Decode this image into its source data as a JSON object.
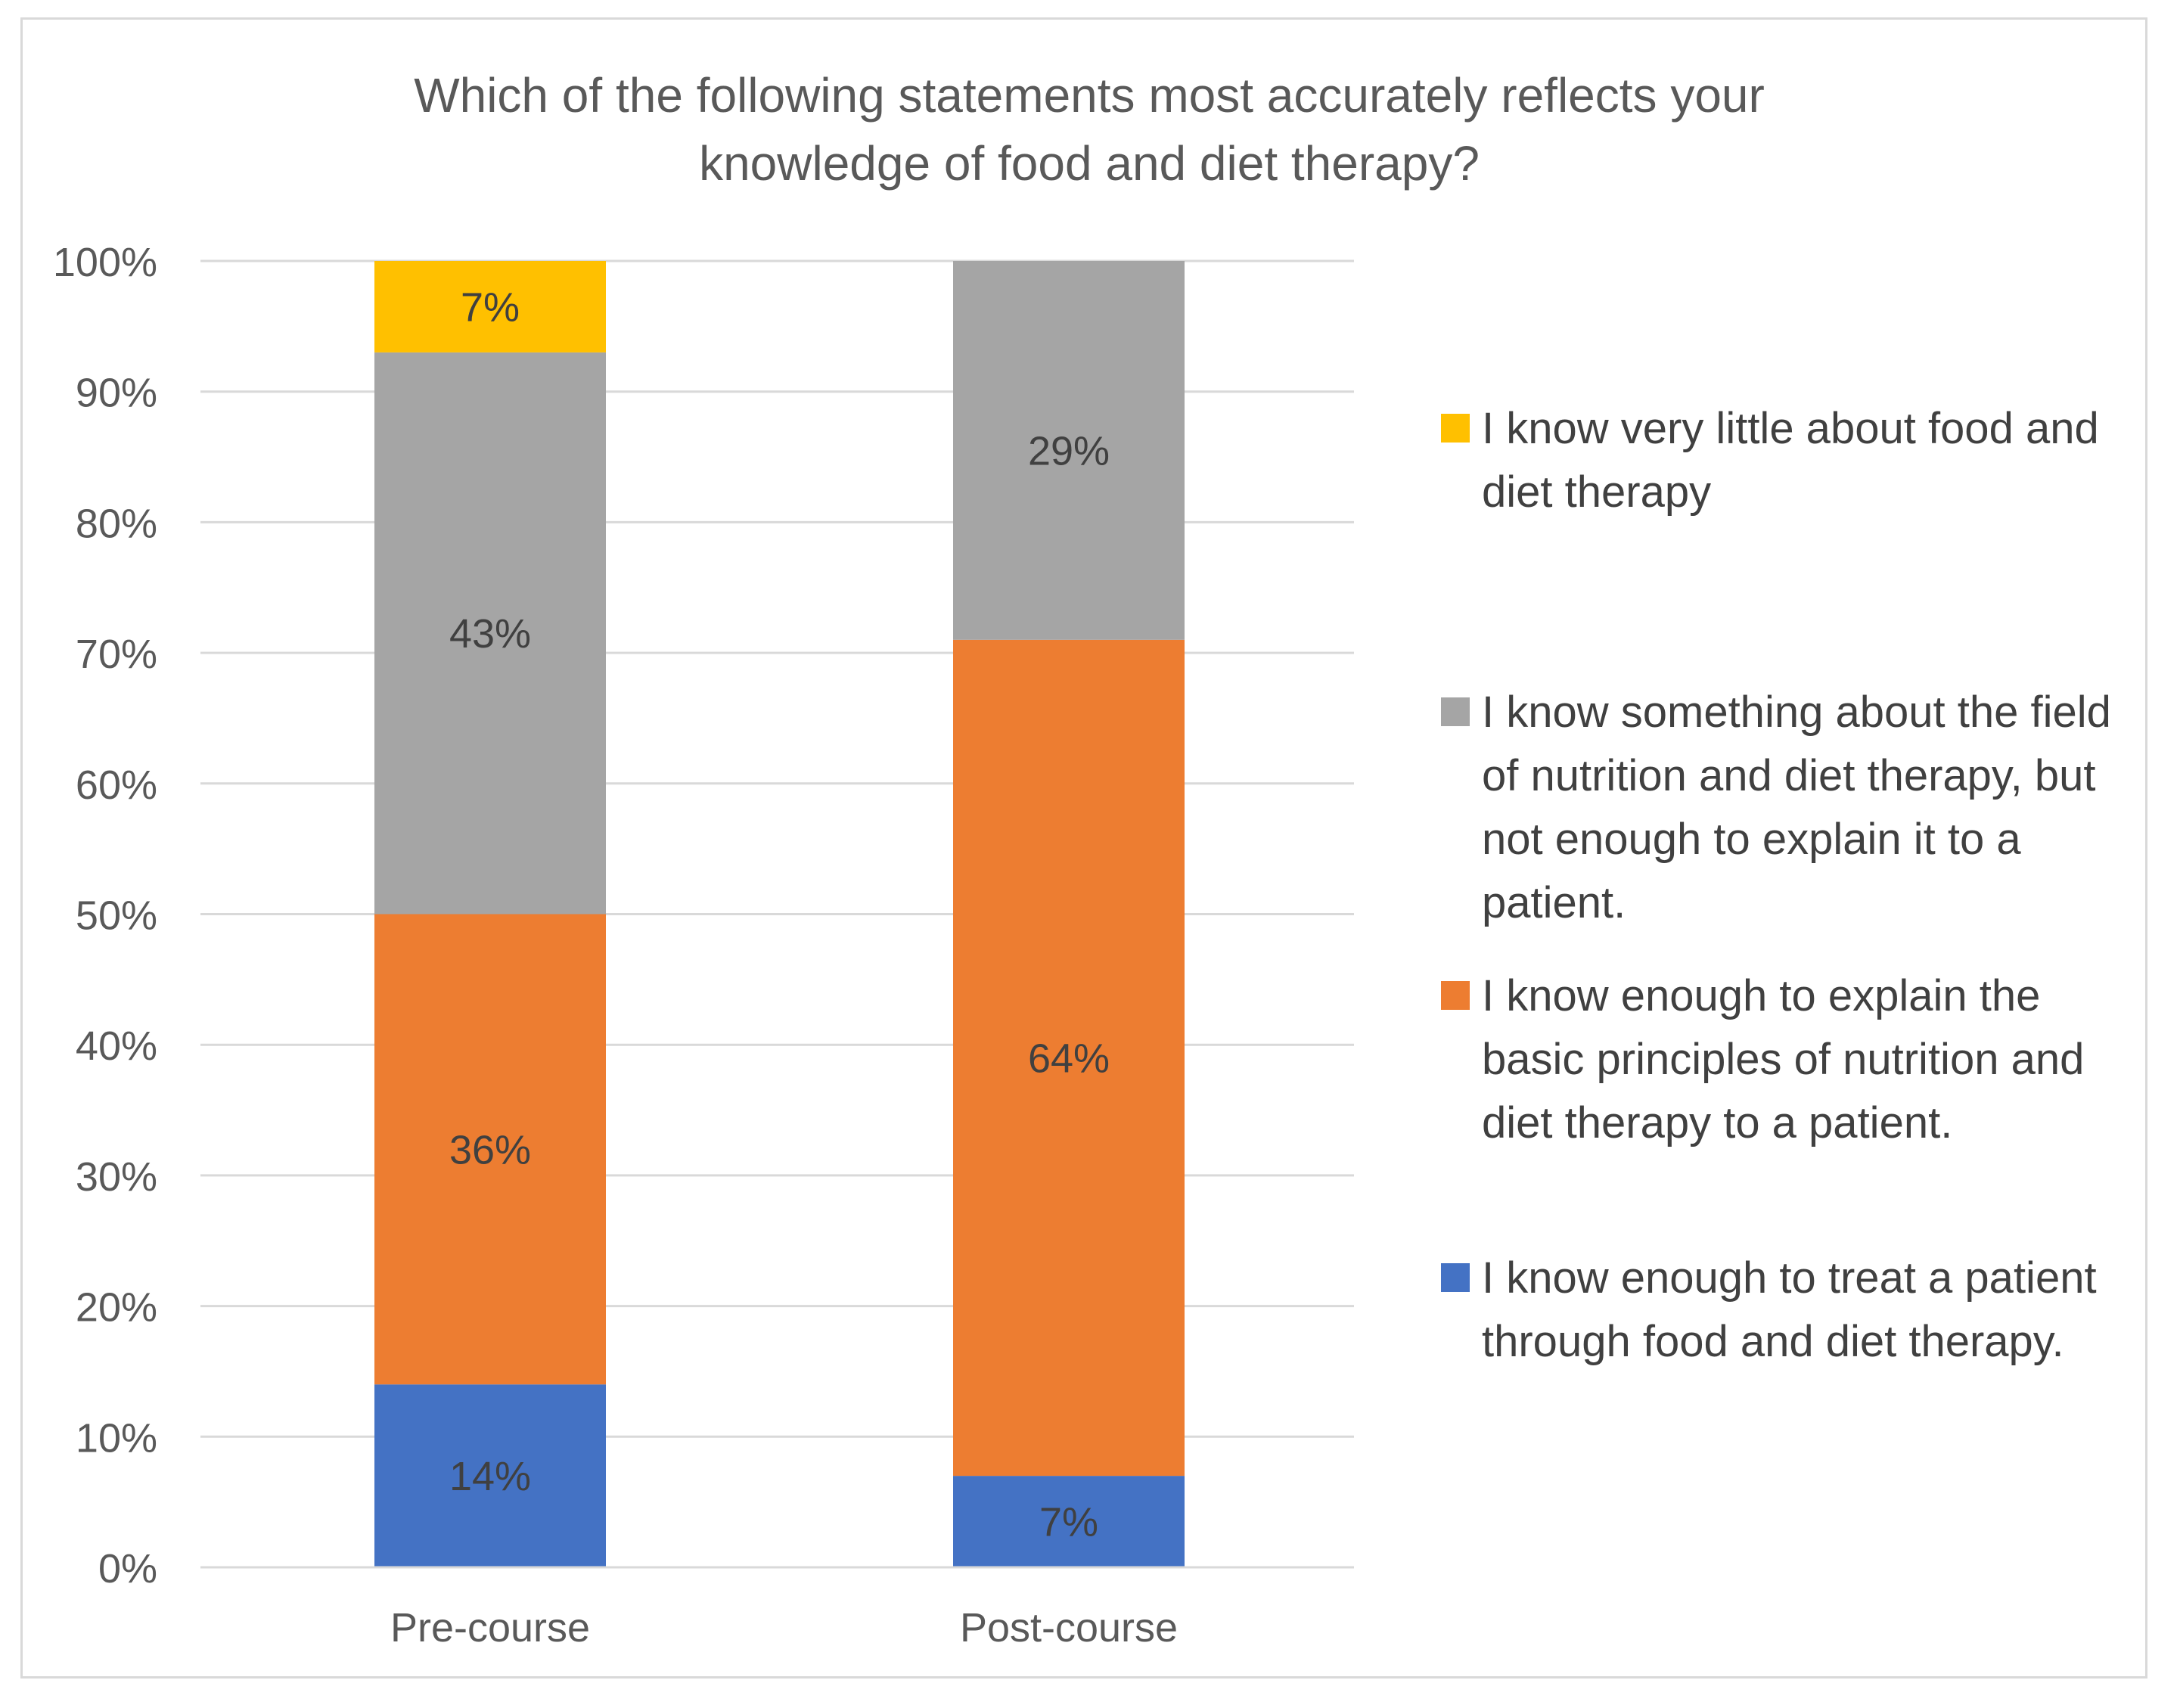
{
  "chart_data": {
    "type": "bar",
    "stacked": true,
    "title": "Which of the following statements most accurately reflects your knowledge of food and diet therapy?",
    "categories": [
      "Pre-course",
      "Post-course"
    ],
    "ylim": [
      0,
      100
    ],
    "y_ticks": [
      "0%",
      "10%",
      "20%",
      "30%",
      "40%",
      "50%",
      "60%",
      "70%",
      "80%",
      "90%",
      "100%"
    ],
    "grid": true,
    "legend_position": "right",
    "series": [
      {
        "name": "I know enough to treat a patient through food and diet therapy.",
        "color": "#4472c4",
        "values": [
          14,
          7
        ],
        "labels": [
          "14%",
          "7%"
        ]
      },
      {
        "name": "I know enough to explain the basic principles of nutrition and diet therapy to a patient.",
        "color": "#ed7d31",
        "values": [
          36,
          64
        ],
        "labels": [
          "36%",
          "64%"
        ]
      },
      {
        "name": "I know something about the field of nutrition and diet therapy, but not enough to explain it to a patient.",
        "color": "#a5a5a5",
        "values": [
          43,
          29
        ],
        "labels": [
          "43%",
          "29%"
        ]
      },
      {
        "name": "I know very little about food and diet therapy",
        "color": "#ffc000",
        "values": [
          7,
          0
        ],
        "labels": [
          "7%",
          ""
        ]
      }
    ]
  }
}
